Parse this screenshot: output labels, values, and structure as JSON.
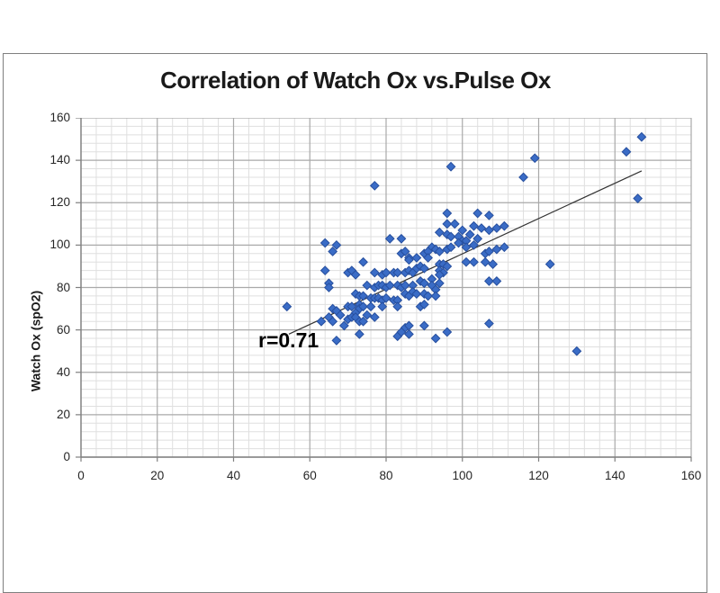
{
  "chart": {
    "title": "Correlation of Watch Ox vs.Pulse Ox",
    "y_axis_title": "Watch Ox (spO2)",
    "annotation_label": "r=0.71",
    "y_tick_labels": [
      "160",
      "140",
      "120",
      "100",
      "80",
      "60",
      "40",
      "20",
      "0"
    ],
    "x_tick_labels": [
      "0",
      "20",
      "40",
      "60",
      "80",
      "100",
      "120",
      "140",
      "160"
    ]
  },
  "colors": {
    "background": "#ffffff",
    "chart_border": "#7f7f7f",
    "major_grid": "#a9a9a9",
    "minor_grid": "#dfdfdf",
    "axis_line": "#808080",
    "marker_fill": "#3a6cc6",
    "marker_edge": "#274f9e",
    "trend_line": "#333333",
    "text": "#1a1a1a"
  },
  "chart_data": {
    "type": "scatter",
    "title": "Correlation of Watch Ox vs.Pulse Ox",
    "xlabel": "",
    "ylabel": "Watch Ox (spO2)",
    "xlim": [
      0,
      160
    ],
    "ylim": [
      0,
      160
    ],
    "x_major_unit": 20,
    "x_minor_unit": 4,
    "y_major_unit": 20,
    "y_minor_unit": 4,
    "grid": "major+minor",
    "legend": "none",
    "marker": "diamond",
    "correlation_r": 0.71,
    "trendline": {
      "x1": 54.5,
      "y1": 58,
      "x2": 147,
      "y2": 135
    },
    "annotations": [
      {
        "text": "r=0.71",
        "x": 46.5,
        "y": 59.8
      }
    ],
    "series": [
      {
        "name": "Watch Ox vs Pulse Ox",
        "points": [
          [
            54,
            71
          ],
          [
            77,
            128
          ],
          [
            97,
            137
          ],
          [
            116,
            132
          ],
          [
            119,
            141
          ],
          [
            143,
            144
          ],
          [
            147,
            151
          ],
          [
            146,
            122
          ],
          [
            130,
            50
          ],
          [
            123,
            91
          ],
          [
            64,
            101
          ],
          [
            67,
            100
          ],
          [
            96,
            115
          ],
          [
            104,
            115
          ],
          [
            107,
            114
          ],
          [
            96,
            110
          ],
          [
            98,
            110
          ],
          [
            100,
            107
          ],
          [
            103,
            109
          ],
          [
            105,
            108
          ],
          [
            107,
            107
          ],
          [
            109,
            108
          ],
          [
            111,
            109
          ],
          [
            94,
            106
          ],
          [
            96,
            105
          ],
          [
            97,
            104
          ],
          [
            99,
            104
          ],
          [
            100,
            102
          ],
          [
            102,
            105
          ],
          [
            104,
            103
          ],
          [
            81,
            103
          ],
          [
            84,
            103
          ],
          [
            99,
            101
          ],
          [
            101,
            102
          ],
          [
            111,
            99
          ],
          [
            92,
            99
          ],
          [
            93,
            98
          ],
          [
            94,
            97
          ],
          [
            96,
            98
          ],
          [
            97,
            99
          ],
          [
            101,
            99
          ],
          [
            103,
            100
          ],
          [
            106,
            96
          ],
          [
            107,
            97
          ],
          [
            109,
            98
          ],
          [
            84,
            96
          ],
          [
            85,
            97
          ],
          [
            86,
            94
          ],
          [
            90,
            96
          ],
          [
            91,
            97
          ],
          [
            66,
            97
          ],
          [
            74,
            92
          ],
          [
            86,
            93
          ],
          [
            88,
            94
          ],
          [
            91,
            94
          ],
          [
            94,
            91
          ],
          [
            95,
            91
          ],
          [
            96,
            90
          ],
          [
            101,
            92
          ],
          [
            103,
            92
          ],
          [
            106,
            92
          ],
          [
            108,
            91
          ],
          [
            64,
            88
          ],
          [
            70,
            87
          ],
          [
            71,
            88
          ],
          [
            72,
            86
          ],
          [
            77,
            87
          ],
          [
            79,
            86
          ],
          [
            80,
            87
          ],
          [
            82,
            87
          ],
          [
            83,
            87
          ],
          [
            85,
            87
          ],
          [
            86,
            88
          ],
          [
            87,
            87
          ],
          [
            88,
            89
          ],
          [
            89,
            90
          ],
          [
            90,
            89
          ],
          [
            94,
            88
          ],
          [
            95,
            87
          ],
          [
            94,
            86
          ],
          [
            65,
            82
          ],
          [
            65,
            80
          ],
          [
            75,
            81
          ],
          [
            77,
            80
          ],
          [
            78,
            81
          ],
          [
            79,
            81
          ],
          [
            80,
            80
          ],
          [
            81,
            81
          ],
          [
            83,
            81
          ],
          [
            84,
            80
          ],
          [
            85,
            81
          ],
          [
            87,
            81
          ],
          [
            89,
            83
          ],
          [
            90,
            82
          ],
          [
            92,
            84
          ],
          [
            94,
            82
          ],
          [
            92,
            81
          ],
          [
            93,
            79
          ],
          [
            107,
            83
          ],
          [
            109,
            83
          ],
          [
            72,
            77
          ],
          [
            73,
            76
          ],
          [
            74,
            76
          ],
          [
            76,
            75
          ],
          [
            77,
            75
          ],
          [
            78,
            75
          ],
          [
            79,
            74
          ],
          [
            80,
            75
          ],
          [
            82,
            74
          ],
          [
            83,
            74
          ],
          [
            85,
            77
          ],
          [
            86,
            76
          ],
          [
            87,
            78
          ],
          [
            88,
            77
          ],
          [
            90,
            77
          ],
          [
            91,
            76
          ],
          [
            93,
            76
          ],
          [
            66,
            70
          ],
          [
            67,
            69
          ],
          [
            70,
            71
          ],
          [
            71,
            71
          ],
          [
            73,
            72
          ],
          [
            73,
            70
          ],
          [
            74,
            71
          ],
          [
            76,
            71
          ],
          [
            79,
            71
          ],
          [
            83,
            71
          ],
          [
            89,
            71
          ],
          [
            90,
            72
          ],
          [
            72,
            68
          ],
          [
            63,
            64
          ],
          [
            65,
            66
          ],
          [
            66,
            64
          ],
          [
            68,
            67
          ],
          [
            69,
            62
          ],
          [
            70,
            65
          ],
          [
            71,
            66
          ],
          [
            72,
            66
          ],
          [
            73,
            64
          ],
          [
            74,
            64
          ],
          [
            75,
            67
          ],
          [
            77,
            66
          ],
          [
            85,
            61
          ],
          [
            86,
            62
          ],
          [
            90,
            62
          ],
          [
            107,
            63
          ],
          [
            73,
            58
          ],
          [
            83,
            57
          ],
          [
            84,
            59
          ],
          [
            86,
            58
          ],
          [
            93,
            56
          ],
          [
            96,
            59
          ],
          [
            67,
            55
          ]
        ]
      }
    ]
  }
}
